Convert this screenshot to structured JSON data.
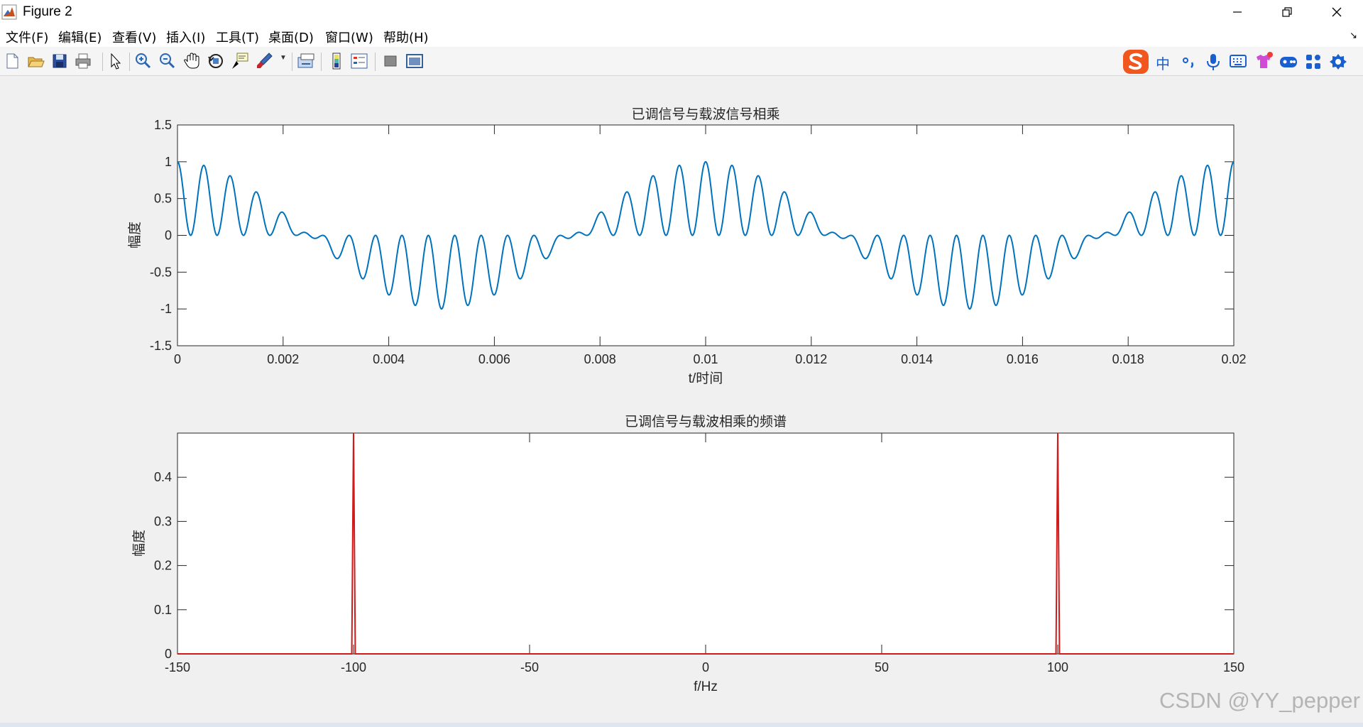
{
  "window": {
    "title": "Figure 2"
  },
  "menu": [
    "文件(F)",
    "编辑(E)",
    "查看(V)",
    "插入(I)",
    "工具(T)",
    "桌面(D)",
    "窗口(W)",
    "帮助(H)"
  ],
  "toolbar_icons": [
    "new-figure-icon",
    "open-file-icon",
    "save-icon",
    "print-icon",
    "edit-plot-arrow-icon",
    "zoom-in-icon",
    "zoom-out-icon",
    "pan-hand-icon",
    "rotate-3d-icon",
    "data-cursor-icon",
    "brush-icon",
    "link-plot-icon",
    "colorbar-icon",
    "legend-icon",
    "hide-plot-tools-icon",
    "show-plot-tools-icon"
  ],
  "ime_icons": [
    "sogou-logo-icon",
    "chinese-mode-icon",
    "punctuation-icon",
    "microphone-icon",
    "keyboard-icon",
    "skin-icon",
    "game-icon",
    "apps-grid-icon",
    "settings-icon"
  ],
  "ime": {
    "mode_label": "中"
  },
  "colors": {
    "blue_series": "#0072BD",
    "red_series": "#D11A1A"
  },
  "chart_data": [
    {
      "type": "line",
      "title": "已调信号与载波信号相乘",
      "xlabel": "t/时间",
      "ylabel": "幅度",
      "xlim": [
        0,
        0.02
      ],
      "ylim": [
        -1.5,
        1.5
      ],
      "xticks": [
        "0",
        "0.002",
        "0.004",
        "0.006",
        "0.008",
        "0.01",
        "0.012",
        "0.014",
        "0.016",
        "0.018",
        "0.02"
      ],
      "yticks": [
        "1.5",
        "1",
        "0.5",
        "0",
        "-0.5",
        "-1",
        "-1.5"
      ],
      "series": [
        {
          "formula": "cos(2*pi*100*t) * cos(2*pi*1000*t)^2",
          "color": "#0072BD"
        }
      ]
    },
    {
      "type": "line",
      "title": "已调信号与载波相乘的频谱",
      "xlabel": "f/Hz",
      "ylabel": "幅度",
      "xlim": [
        -150,
        150
      ],
      "ylim": [
        0,
        0.5
      ],
      "xticks": [
        "-150",
        "-100",
        "-50",
        "0",
        "50",
        "100",
        "150"
      ],
      "yticks": [
        "0.4",
        "0.3",
        "0.2",
        "0.1",
        "0"
      ],
      "series": [
        {
          "peaks": [
            {
              "x": -100,
              "y": 0.5
            },
            {
              "x": 100,
              "y": 0.5
            }
          ],
          "baseline": 0,
          "color": "#D11A1A"
        }
      ]
    }
  ],
  "watermark": "CSDN @YY_pepper"
}
